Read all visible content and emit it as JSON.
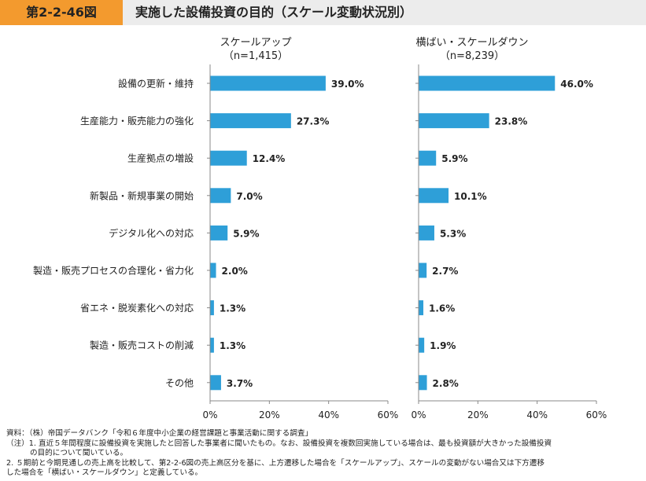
{
  "header": {
    "figure_label": "第2-2-46図",
    "title": "実施した設備投資の目的（スケール変動状況別）"
  },
  "chart_data": [
    {
      "type": "bar",
      "orientation": "horizontal",
      "title": "スケールアップ",
      "subtitle": "（n=1,415）",
      "categories": [
        "設備の更新・維持",
        "生産能力・販売能力の強化",
        "生産拠点の増設",
        "新製品・新規事業の開始",
        "デジタル化への対応",
        "製造・販売プロセスの合理化・省力化",
        "省エネ・脱炭素化への対応",
        "製造・販売コストの削減",
        "その他"
      ],
      "values": [
        39.0,
        27.3,
        12.4,
        7.0,
        5.9,
        2.0,
        1.3,
        1.3,
        3.7
      ],
      "value_labels": [
        "39.0%",
        "27.3%",
        "12.4%",
        "7.0%",
        "5.9%",
        "2.0%",
        "1.3%",
        "1.3%",
        "3.7%"
      ],
      "xlim": [
        0,
        60
      ],
      "xticks": [
        "0%",
        "20%",
        "40%",
        "60%"
      ],
      "bar_color": "#2e9fd8"
    },
    {
      "type": "bar",
      "orientation": "horizontal",
      "title": "横ばい・スケールダウン",
      "subtitle": "（n=8,239）",
      "categories": [
        "設備の更新・維持",
        "生産能力・販売能力の強化",
        "生産拠点の増設",
        "新製品・新規事業の開始",
        "デジタル化への対応",
        "製造・販売プロセスの合理化・省力化",
        "省エネ・脱炭素化への対応",
        "製造・販売コストの削減",
        "その他"
      ],
      "values": [
        46.0,
        23.8,
        5.9,
        10.1,
        5.3,
        2.7,
        1.6,
        1.9,
        2.8
      ],
      "value_labels": [
        "46.0%",
        "23.8%",
        "5.9%",
        "10.1%",
        "5.3%",
        "2.7%",
        "1.6%",
        "1.9%",
        "2.8%"
      ],
      "xlim": [
        0,
        60
      ],
      "xticks": [
        "0%",
        "20%",
        "40%",
        "60%"
      ],
      "bar_color": "#2e9fd8"
    }
  ],
  "notes": [
    "資料：（株）帝国データバンク「令和６年度中小企業の経営課題と事業活動に関する調査」",
    "（注）1. 直近５年間程度に設備投資を実施したと回答した事業者に聞いたもの。なお、設備投資を複数回実施している場合は、最も投資額が大きかった設備投資",
    "の目的について聞いている。",
    "2. ５期前と今期見通しの売上高を比較して、第2-2-6図の売上高区分を基に、上方遷移した場合を「スケールアップ」、スケールの変動がない場合又は下方遷移",
    "した場合を「横ばい・スケールダウン」と定義している。"
  ]
}
